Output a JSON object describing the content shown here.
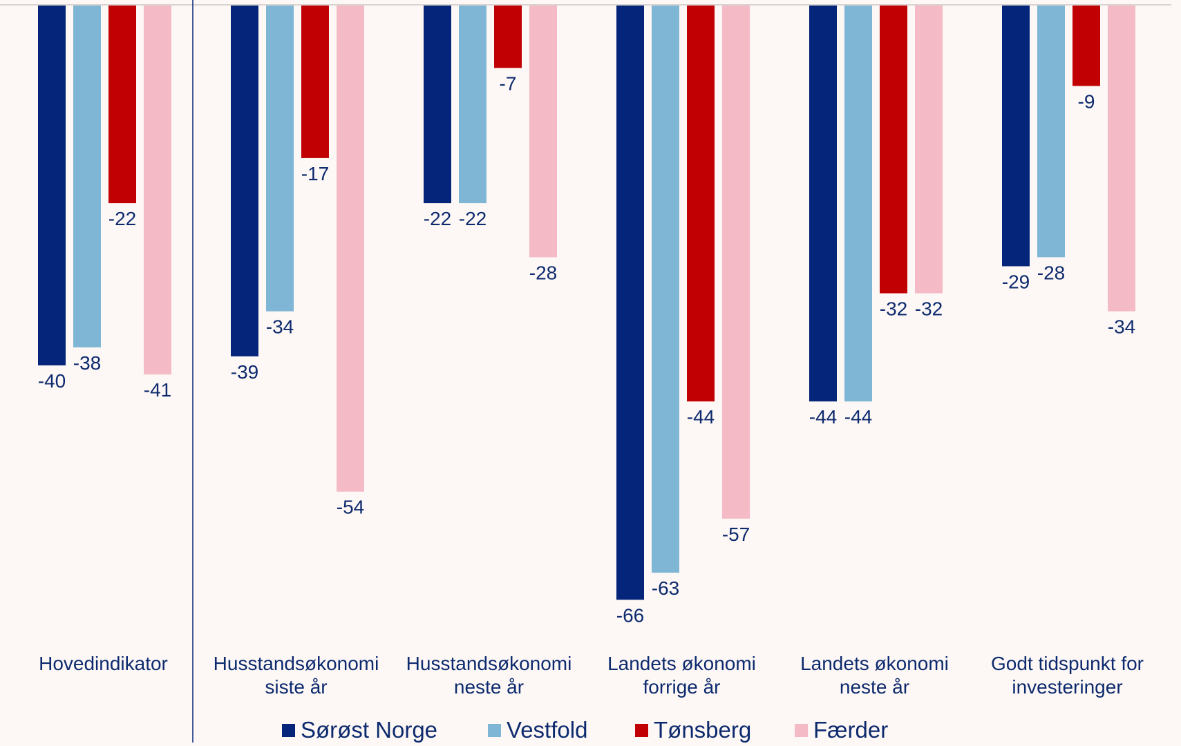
{
  "chart_data": {
    "type": "bar",
    "orientation": "vertical",
    "title": "",
    "xlabel": "",
    "ylabel": "",
    "categories": [
      [
        "Hovedindikator"
      ],
      [
        "Husstandsøkonomi",
        "siste år"
      ],
      [
        "Husstandsøkonomi",
        "neste år"
      ],
      [
        "Landets økonomi",
        "forrige år"
      ],
      [
        "Landets økonomi",
        "neste år"
      ],
      [
        "Godt tidspunkt for",
        "investeringer"
      ]
    ],
    "series": [
      {
        "name": "Sørøst Norge",
        "color": "#04257a",
        "values": [
          -40,
          -39,
          -22,
          -66,
          -44,
          -29
        ]
      },
      {
        "name": "Vestfold",
        "color": "#7fb5d5",
        "values": [
          -38,
          -34,
          -22,
          -63,
          -44,
          -28
        ]
      },
      {
        "name": "Tønsberg",
        "color": "#c00003",
        "values": [
          -22,
          -17,
          -7,
          -44,
          -32,
          -9
        ]
      },
      {
        "name": "Færder",
        "color": "#f4bac5",
        "values": [
          -41,
          -54,
          -28,
          -57,
          -32,
          -34
        ]
      }
    ],
    "ylim": [
      -70,
      0
    ],
    "grid": false,
    "legend_position": "bottom",
    "data_labels": true,
    "label_color": "#0d2a6e"
  }
}
